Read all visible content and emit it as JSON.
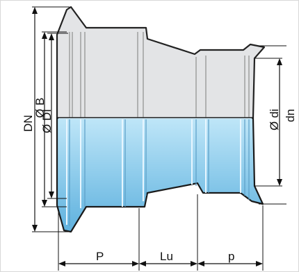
{
  "labels": {
    "dn_left": "DN",
    "b": "Ø B",
    "di_left": "Ø DI",
    "di_right": "Ø di",
    "dn_right": "dn",
    "p_left": "P",
    "lu": "Lu",
    "p_right": "p"
  },
  "colors": {
    "water_top": "#bfe6f8",
    "water_mid": "#89c9ea",
    "water_bottom": "#5fb1de",
    "steel": "#e3e4e6"
  }
}
